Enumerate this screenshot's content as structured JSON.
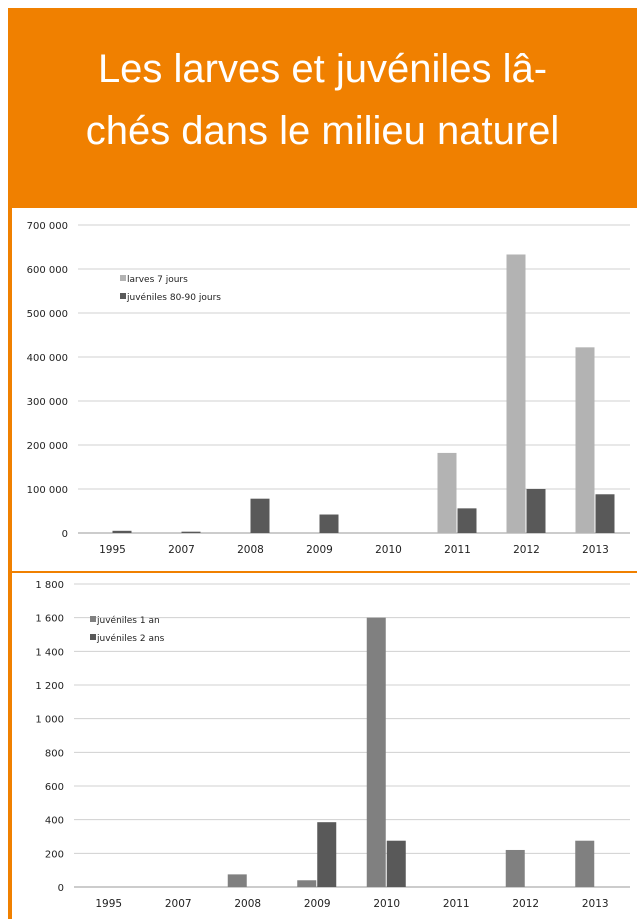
{
  "title": "Les larves et juvéniles lâ-\nchés dans le milieu naturel",
  "colors": {
    "title_bg": "#f08000",
    "title_fg": "#ffffff",
    "light_bar": "#b3b3b3",
    "dark_bar": "#595959",
    "mid_bar": "#808080",
    "grid": "#d0d0d0"
  },
  "chart_data": [
    {
      "type": "bar",
      "categories": [
        "1995",
        "2007",
        "2008",
        "2009",
        "2010",
        "2011",
        "2012",
        "2013"
      ],
      "series": [
        {
          "name": "larves 7 jours",
          "values": [
            0,
            0,
            0,
            0,
            0,
            182000,
            633000,
            422000
          ]
        },
        {
          "name": "juvéniles 80-90 jours",
          "values": [
            5000,
            3000,
            78000,
            42000,
            0,
            56000,
            100000,
            88000
          ]
        }
      ],
      "ylim": [
        0,
        700000
      ],
      "yticks": [
        "0",
        "100 000",
        "200 000",
        "300 000",
        "400 000",
        "500 000",
        "600 000",
        "700 000"
      ],
      "legend": "top-left",
      "grid": true
    },
    {
      "type": "bar",
      "categories": [
        "1995",
        "2007",
        "2008",
        "2009",
        "2010",
        "2011",
        "2012",
        "2013"
      ],
      "series": [
        {
          "name": "juvéniles 1 an",
          "values": [
            0,
            0,
            75,
            40,
            1600,
            0,
            220,
            275
          ]
        },
        {
          "name": "juvéniles 2 ans",
          "values": [
            0,
            0,
            0,
            385,
            275,
            0,
            0,
            0
          ]
        }
      ],
      "ylim": [
        0,
        1800
      ],
      "yticks": [
        "0",
        "200",
        "400",
        "600",
        "800",
        "1 000",
        "1 200",
        "1 400",
        "1 600",
        "1 800"
      ],
      "legend": "top-left",
      "grid": true
    }
  ]
}
